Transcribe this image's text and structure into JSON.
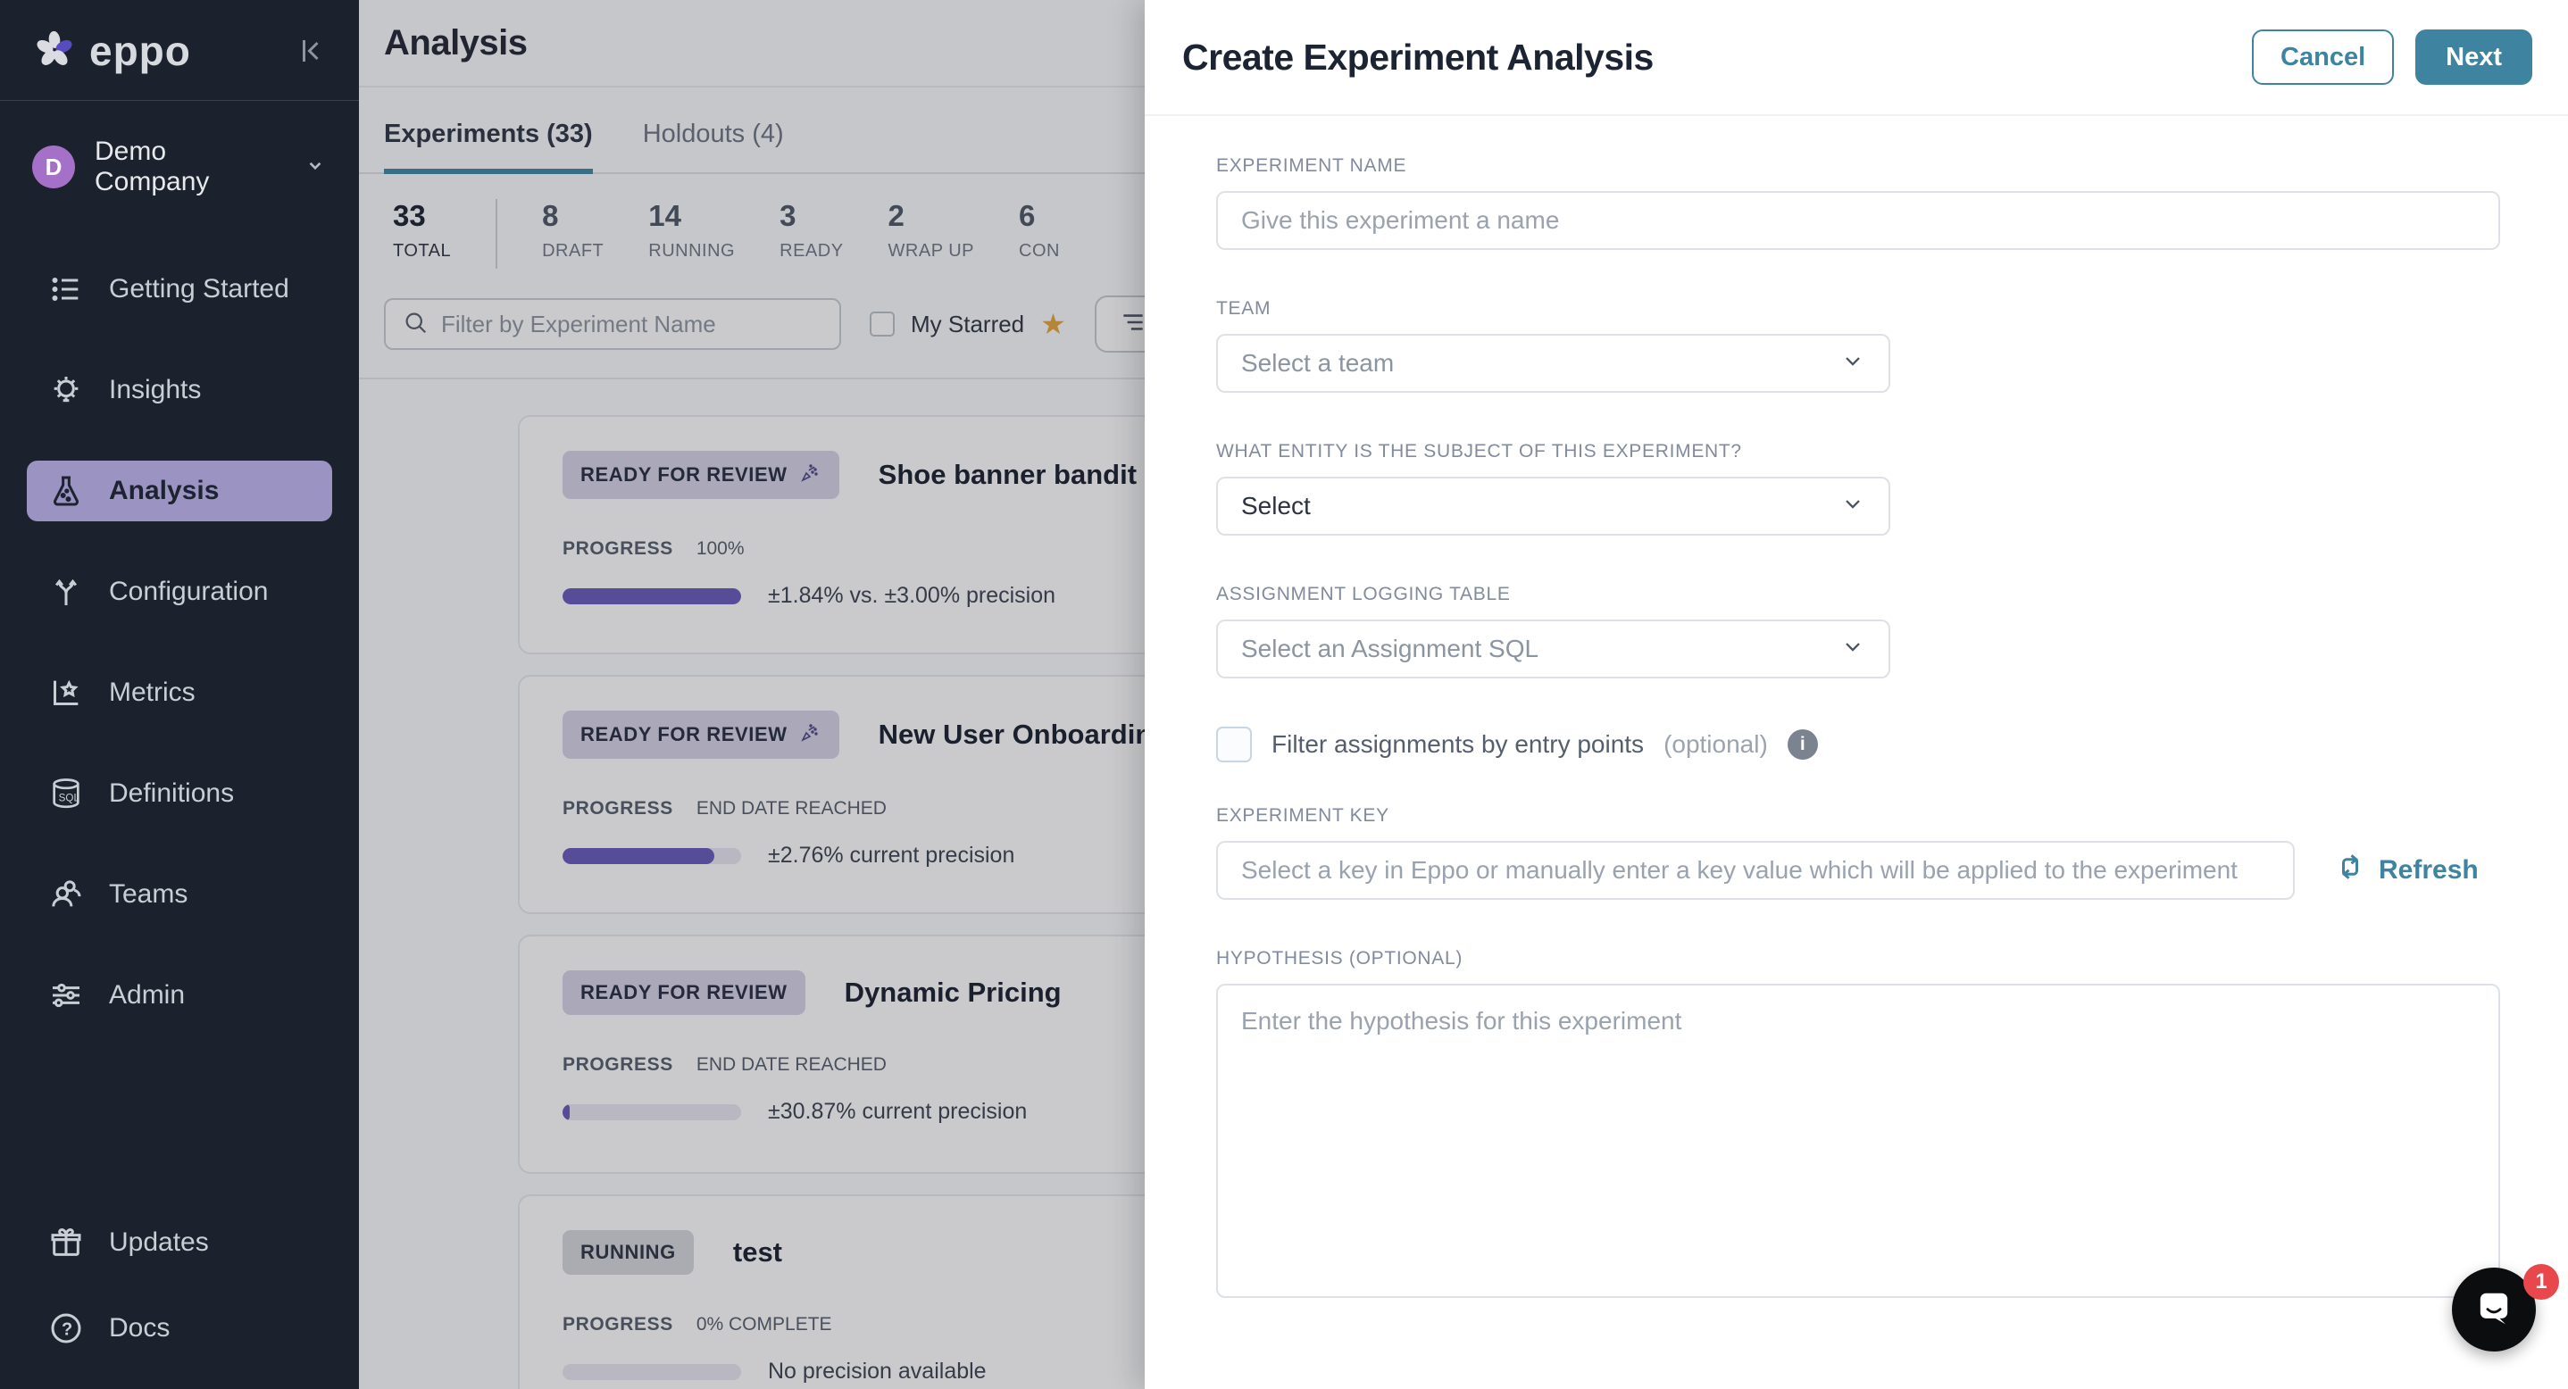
{
  "colors": {
    "accent_teal": "#3e84a0",
    "progress_purple": "#6457b8",
    "badge_purple_bg": "#d6d2e6",
    "active_nav_purple": "#9b94c3",
    "sidebar_bg": "#1c222d",
    "star_gold": "#e3a43c",
    "notification_red": "#e8484b"
  },
  "sidebar": {
    "logo_text": "eppo",
    "company": {
      "avatar_initial": "D",
      "name": "Demo Company"
    },
    "items": [
      {
        "label": "Getting Started"
      },
      {
        "label": "Insights"
      },
      {
        "label": "Analysis"
      },
      {
        "label": "Configuration"
      },
      {
        "label": "Metrics"
      },
      {
        "label": "Definitions"
      },
      {
        "label": "Teams"
      },
      {
        "label": "Admin"
      }
    ],
    "footer_items": [
      {
        "label": "Updates"
      },
      {
        "label": "Docs"
      }
    ]
  },
  "main": {
    "title": "Analysis",
    "tabs": [
      {
        "label": "Experiments (33)"
      },
      {
        "label": "Holdouts (4)"
      }
    ],
    "stats": [
      {
        "value": "33",
        "label": "TOTAL"
      },
      {
        "value": "8",
        "label": "DRAFT"
      },
      {
        "value": "14",
        "label": "RUNNING"
      },
      {
        "value": "3",
        "label": "READY"
      },
      {
        "value": "2",
        "label": "WRAP UP"
      },
      {
        "value": "6",
        "label": "CON"
      }
    ],
    "filter": {
      "search_placeholder": "Filter by Experiment Name",
      "my_starred_label": "My Starred"
    },
    "cards": [
      {
        "status": "READY FOR REVIEW",
        "title": "Shoe banner bandit ana",
        "progress_label": "PROGRESS",
        "progress_value": "100%",
        "progress_percent": 100,
        "precision_text": "±1.84% vs. ±3.00% precision"
      },
      {
        "status": "READY FOR REVIEW",
        "title": "New User Onboarding",
        "progress_label": "PROGRESS",
        "progress_value": "END DATE REACHED",
        "progress_percent": 85,
        "precision_text": "±2.76% current precision"
      },
      {
        "status": "READY FOR REVIEW",
        "title": "Dynamic Pricing",
        "progress_label": "PROGRESS",
        "progress_value": "END DATE REACHED",
        "progress_percent": 4,
        "precision_text": "±30.87% current precision"
      },
      {
        "status": "RUNNING",
        "title": "test",
        "progress_label": "PROGRESS",
        "progress_value": "0% COMPLETE",
        "progress_percent": 0,
        "precision_text": "No precision available"
      }
    ]
  },
  "modal": {
    "title": "Create Experiment Analysis",
    "cancel_label": "Cancel",
    "next_label": "Next",
    "fields": {
      "experiment_name": {
        "label": "EXPERIMENT NAME",
        "placeholder": "Give this experiment a name"
      },
      "team": {
        "label": "TEAM",
        "placeholder": "Select a team"
      },
      "entity": {
        "label": "WHAT ENTITY IS THE SUBJECT OF THIS EXPERIMENT?",
        "value": "Select"
      },
      "assignment_table": {
        "label": "ASSIGNMENT LOGGING TABLE",
        "placeholder": "Select an Assignment SQL"
      },
      "entry_points": {
        "label": "Filter assignments by entry points",
        "optional_label": "(optional)"
      },
      "experiment_key": {
        "label": "EXPERIMENT KEY",
        "placeholder": "Select a key in Eppo or manually enter a key value which will be applied to the experiment",
        "refresh_label": "Refresh"
      },
      "hypothesis": {
        "label": "HYPOTHESIS (OPTIONAL)",
        "placeholder": "Enter the hypothesis for this experiment"
      }
    }
  },
  "chat": {
    "badge_count": "1"
  }
}
